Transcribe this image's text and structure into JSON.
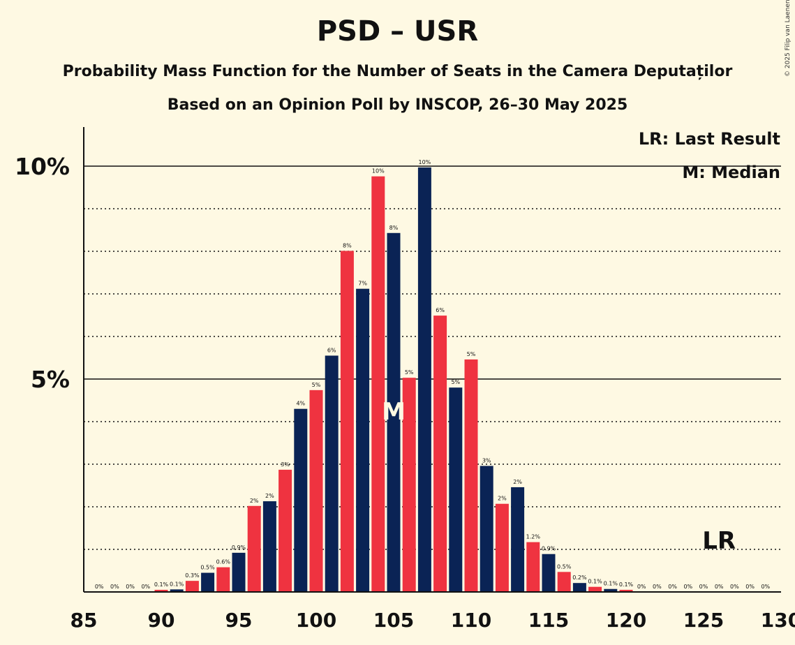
{
  "chart_data": {
    "type": "bar",
    "title": "PSD – USR",
    "subtitle": "Probability Mass Function for the Number of Seats in the Camera Deputaților",
    "subtitle2": "Based on an Opinion Poll by INSCOP, 26–30 May 2025",
    "copyright": "© 2025 Filip van Laenen",
    "legend": [
      "LR: Last Result",
      "M: Median"
    ],
    "legend_position": "top-right",
    "xlim": [
      85,
      130
    ],
    "ylim": [
      0,
      10.9
    ],
    "x_ticks": [
      85,
      90,
      95,
      100,
      105,
      110,
      115,
      120,
      125,
      130
    ],
    "y_ticks": [
      {
        "value": 5,
        "label": "5%"
      },
      {
        "value": 10,
        "label": "10%"
      }
    ],
    "y_gridlines": [
      1,
      2,
      3,
      4,
      6,
      7,
      8,
      9
    ],
    "colors": {
      "odd": "#0A2355",
      "even": "#EF3340",
      "background": "#FEF9E3"
    },
    "median": {
      "seats": 105,
      "label": "M"
    },
    "last_result": {
      "seats": 126,
      "label": "LR"
    },
    "seats": [
      86,
      87,
      88,
      89,
      90,
      91,
      92,
      93,
      94,
      95,
      96,
      97,
      98,
      99,
      100,
      101,
      102,
      103,
      104,
      105,
      106,
      107,
      108,
      109,
      110,
      111,
      112,
      113,
      114,
      115,
      116,
      117,
      118,
      119,
      120,
      121,
      122,
      123,
      124,
      125,
      126,
      127,
      128,
      129
    ],
    "values": [
      0,
      0,
      0,
      0,
      0.05,
      0.06,
      0.26,
      0.45,
      0.58,
      0.92,
      2.02,
      2.13,
      2.87,
      4.3,
      4.74,
      5.55,
      8.01,
      7.12,
      9.76,
      8.43,
      5.03,
      9.97,
      6.49,
      4.8,
      5.46,
      2.96,
      2.07,
      2.46,
      1.17,
      0.89,
      0.47,
      0.21,
      0.12,
      0.07,
      0.05,
      0,
      0,
      0,
      0,
      0,
      0,
      0,
      0,
      0
    ],
    "labels": [
      "0%",
      "0%",
      "0%",
      "0%",
      "0.1%",
      "0.1%",
      "0.3%",
      "0.5%",
      "0.6%",
      "0.9%",
      "2%",
      "2%",
      "3%",
      "4%",
      "5%",
      "6%",
      "8%",
      "7%",
      "10%",
      "8%",
      "5%",
      "10%",
      "6%",
      "5%",
      "5%",
      "3%",
      "2%",
      "2%",
      "1.2%",
      "0.9%",
      "0.5%",
      "0.2%",
      "0.1%",
      "0.1%",
      "0.1%",
      "0%",
      "0%",
      "0%",
      "0%",
      "0%",
      "0%",
      "0%",
      "0%",
      "0%"
    ]
  }
}
